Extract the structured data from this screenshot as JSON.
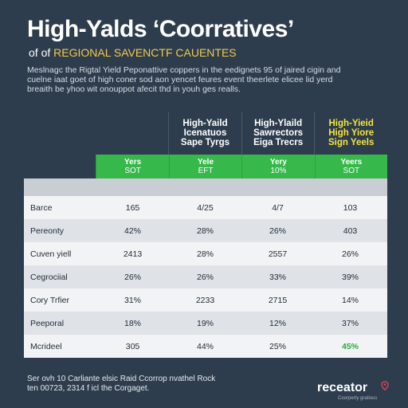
{
  "header": {
    "title": "High-Yalds ‘Coorratives’",
    "subtitle_prefix": "of of",
    "subtitle_accent": "REGIONAL SAVENCTF CAUENTES"
  },
  "intro_lines": [
    "Meslnagc the Rigtal Yield Peponattive coppers in the eedignets 95 of jaired cigin and",
    "cuelne iaat goet of high coner sod aon yencet feures event theerlete elicee lid yerd",
    "breaith be yhoo wit onouppot afecit thd in youh ges realls."
  ],
  "table": {
    "col_heads": [
      {
        "l1": "High-Yaild",
        "l2": "Icenatuos",
        "l3": "Sape Tyrgs"
      },
      {
        "l1": "High-Ylaild",
        "l2": "Sawrectors",
        "l3": "Eiga Trecrs"
      },
      {
        "l1": "High-Yieid",
        "l2": "High Yiore",
        "l3": "Sign Yeels"
      }
    ],
    "green_heads": [
      {
        "l1": "Yers",
        "l2": "SOT"
      },
      {
        "l1": "Yele",
        "l2": "EFT"
      },
      {
        "l1": "Yery",
        "l2": "10%"
      },
      {
        "l1": "Yeers",
        "l2": "SOT"
      }
    ],
    "rows": [
      {
        "label": "Barce",
        "cells": [
          "165",
          "4/25",
          "4/7",
          "103"
        ]
      },
      {
        "label": "Pereonty",
        "cells": [
          "42%",
          "28%",
          "26%",
          "403"
        ]
      },
      {
        "label": "Cuven yiell",
        "cells": [
          "2413",
          "28%",
          "2557",
          "26%"
        ]
      },
      {
        "label": "Cegrociial",
        "cells": [
          "26%",
          "26%",
          "33%",
          "39%"
        ]
      },
      {
        "label": "Cory Trfier",
        "cells": [
          "31%",
          "2233",
          "2715",
          "14%"
        ]
      },
      {
        "label": "Peeporal",
        "cells": [
          "18%",
          "19%",
          "12%",
          "37%"
        ]
      },
      {
        "label": "Mcrideel",
        "cells": [
          "305",
          "44%",
          "25%",
          "45%"
        ]
      }
    ]
  },
  "footer_lines": [
    "Ser ovh 10 Carliante elsic Raid Ccorrop nvathel Rock",
    "ten 00723, 2314 f icl the Corgaget."
  ],
  "brand": {
    "name": "receator",
    "tagline": "Coorperty gratious"
  },
  "colors": {
    "background": "#2e3d4d",
    "accent_green": "#36b84a",
    "accent_yellow": "#f5e63a",
    "pin_red": "#e0405a"
  }
}
